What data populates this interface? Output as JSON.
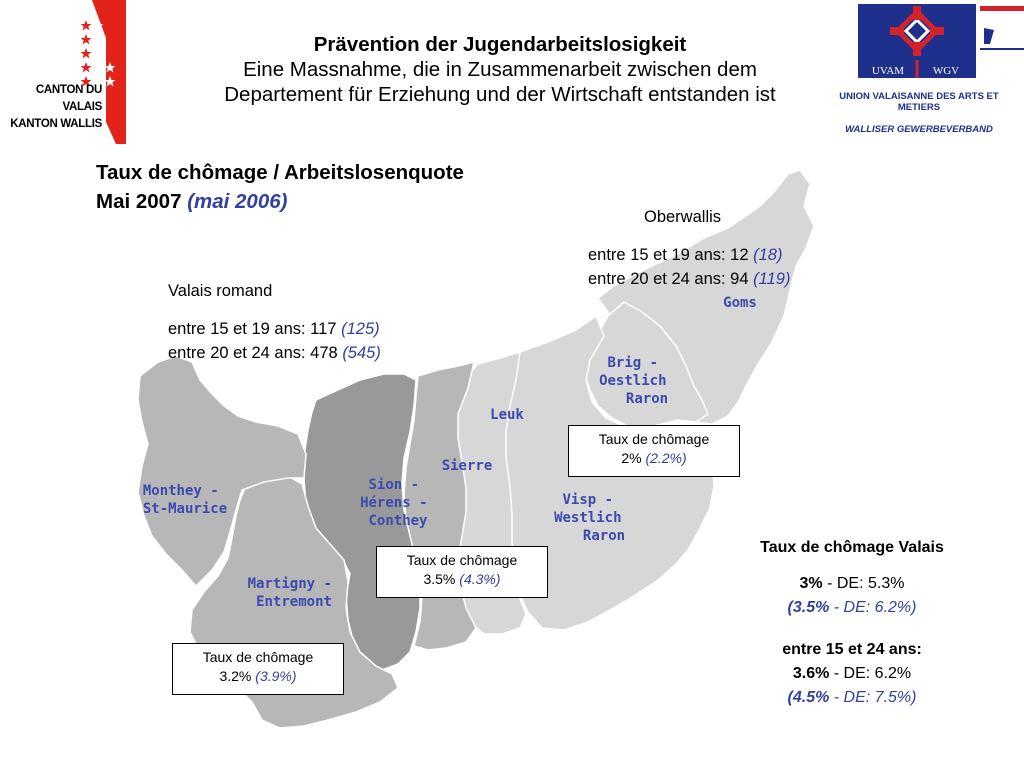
{
  "header": {
    "title": "Prävention der Jugendarbeitslosigkeit",
    "subtitle": "Eine Massnahme, die in Zusammenarbeit zwischen dem Departement für Erziehung und der Wirtschaft entstanden ist"
  },
  "canton_logo": {
    "line1": "CANTON DU VALAIS",
    "line2": "KANTON WALLIS",
    "flag_colors": {
      "red": "#e2231a",
      "white": "#ffffff"
    }
  },
  "uvam_logo": {
    "left_text": "UVAM",
    "right_text": "WGV",
    "name_fr": "UNION VALAISANNE DES ARTS ET METIERS",
    "name_de": "WALLISER GEWERBEVERBAND",
    "colors": {
      "blue": "#1f2f8c",
      "red": "#d2232a"
    }
  },
  "main_title": {
    "line1": "Taux de chômage / Arbeitslosenquote",
    "line2_main": "Mai 2007",
    "line2_prev": "(mai 2006)"
  },
  "map": {
    "colors": {
      "light": "#d7d7d7",
      "medium": "#b7b7b7",
      "dark": "#999999",
      "border": "#ffffff"
    },
    "regions": {
      "monthey": [
        "Monthey -",
        "St-Maurice"
      ],
      "martigny": [
        "Martigny -",
        "Entremont"
      ],
      "sion": [
        "Sion -",
        "Hérens -",
        "Conthey"
      ],
      "sierre": [
        "Sierre"
      ],
      "leuk": [
        "Leuk"
      ],
      "visp": [
        "Visp -",
        "Westlich",
        "Raron"
      ],
      "brig": [
        "Brig -",
        "Oestlich",
        "Raron"
      ],
      "goms": [
        "Goms"
      ]
    }
  },
  "oberwallis": {
    "heading": "Oberwallis",
    "row1_label": "entre 15 et 19 ans: 12",
    "row1_prev": "(18)",
    "row2_label": "entre 20 et 24 ans: 94",
    "row2_prev": "(119)"
  },
  "valais_romand": {
    "heading": "Valais romand",
    "row1_label": "entre 15 et 19 ans: 117",
    "row1_prev": "(125)",
    "row2_label": "entre 20 et 24 ans: 478",
    "row2_prev": "(545)"
  },
  "rate_boxes": {
    "upper": {
      "label": "Taux de chômage",
      "value": "2%",
      "prev": "(2.2%)"
    },
    "central": {
      "label": "Taux de chômage",
      "value": "3.5%",
      "prev": "(4.3%)"
    },
    "lower": {
      "label": "Taux de chômage",
      "value": "3.2%",
      "prev": "(3.9%)"
    }
  },
  "valais_summary": {
    "heading": "Taux de chômage Valais",
    "overall_value": "3%",
    "overall_sep": " -  DE: 5.3%",
    "overall_prev_value": "(3.5%",
    "overall_prev_rest": " - DE: 6.2%)",
    "youth_heading": "entre 15 et 24 ans:",
    "youth_value": "3.6%",
    "youth_sep": " - DE: 6.2%",
    "youth_prev_value": "(4.5%",
    "youth_prev_rest": " - DE: 7.5%)"
  }
}
